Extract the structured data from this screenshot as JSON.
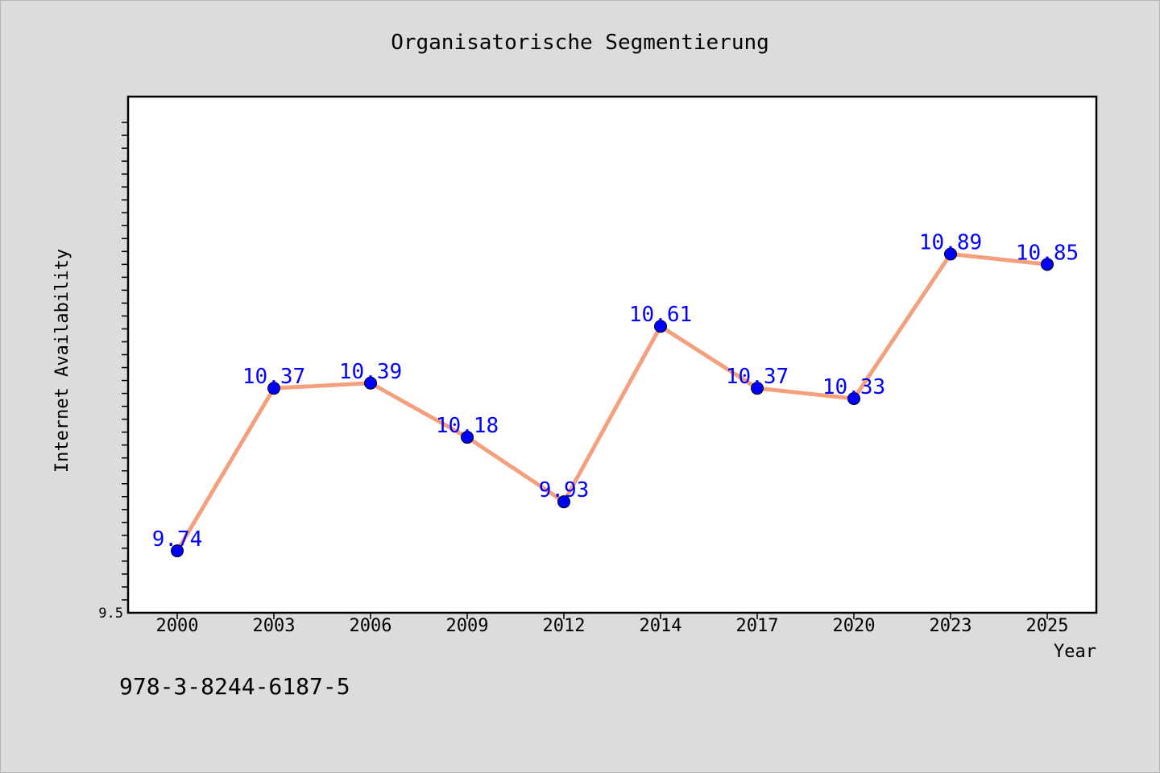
{
  "chart_data": {
    "type": "line",
    "title": "Organisatorische Segmentierung",
    "xlabel": "Year",
    "ylabel": "Internet Availability",
    "categories": [
      "2000",
      "2003",
      "2006",
      "2009",
      "2012",
      "2014",
      "2017",
      "2020",
      "2023",
      "2025"
    ],
    "series": [
      {
        "values": [
          9.74,
          10.37,
          10.39,
          10.18,
          9.93,
          10.61,
          10.37,
          10.33,
          10.89,
          10.85
        ],
        "labels": [
          "9.74",
          "10.37",
          "10.39",
          "10.18",
          "9.93",
          "10.61",
          "10.37",
          "10.33",
          "10.89",
          "10.85"
        ]
      }
    ],
    "ylim": [
      9.5,
      11.5
    ],
    "y_tick_labels": [
      "9.5"
    ],
    "grid": false,
    "colors": {
      "line": "#f4a07e",
      "marker": "#0000ff",
      "data_label": "#0000ff",
      "background": "#dcdcdc",
      "plot_background": "#ffffff"
    }
  },
  "footer": {
    "isbn": "978-3-8244-6187-5"
  }
}
